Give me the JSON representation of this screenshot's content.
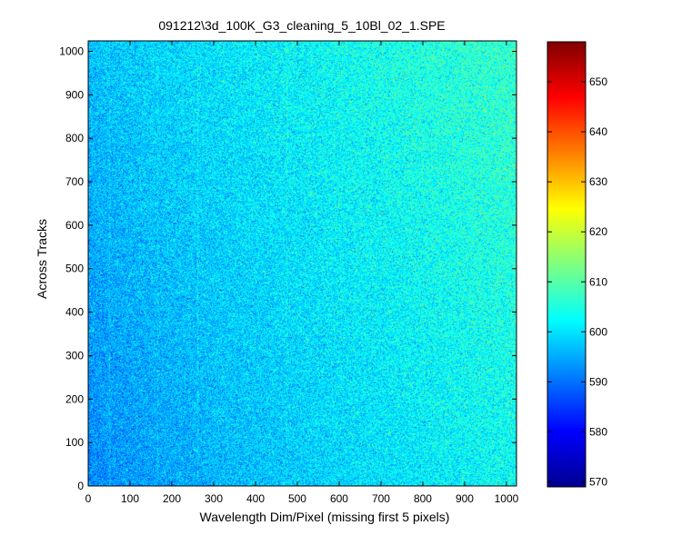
{
  "chart_data": {
    "type": "heatmap",
    "title": "091212\\3d_100K_G3_cleaning_5_10Bl_02_1.SPE",
    "xlabel": "Wavelength Dim/Pixel (missing first 5 pixels)",
    "ylabel": "Across Tracks",
    "xlim": [
      0,
      1024
    ],
    "ylim": [
      0,
      1024
    ],
    "x_ticks": [
      0,
      100,
      200,
      300,
      400,
      500,
      600,
      700,
      800,
      900,
      1000
    ],
    "y_ticks": [
      0,
      100,
      200,
      300,
      400,
      500,
      600,
      700,
      800,
      900,
      1000
    ],
    "colorbar": {
      "colormap": "jet",
      "range": [
        569,
        658
      ],
      "ticks": [
        570,
        580,
        590,
        600,
        610,
        620,
        630,
        640,
        650
      ]
    },
    "approx_mean_values": {
      "left_edge_bottom": 592,
      "left_edge_top": 597,
      "right_edge_bottom": 603,
      "right_edge_top": 607
    },
    "noise_std": 4.5,
    "vertical_streaks_x": [
      50,
      165,
      260,
      475
    ]
  }
}
